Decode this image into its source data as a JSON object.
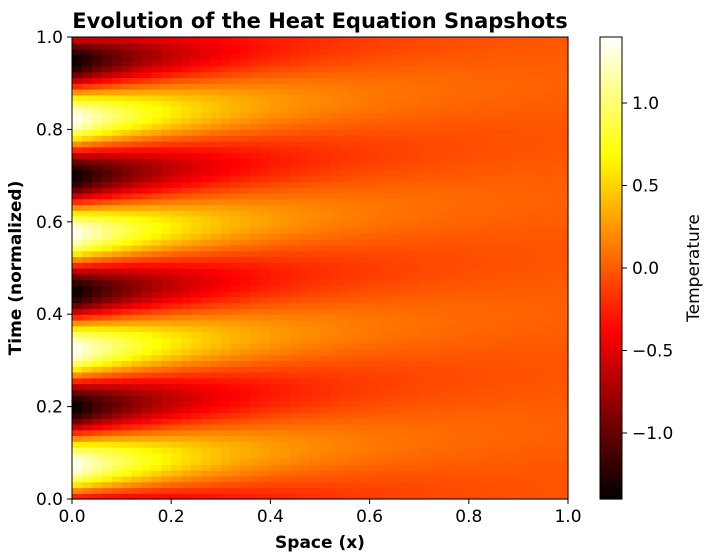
{
  "chart_data": {
    "type": "heatmap",
    "title": "Evolution of the Heat Equation Snapshots",
    "xlabel": "Space (x)",
    "ylabel": "Time (normalized)",
    "xlim": [
      0.0,
      1.0
    ],
    "ylim": [
      0.0,
      1.0
    ],
    "x_ticks": [
      "0.0",
      "0.2",
      "0.4",
      "0.6",
      "0.8",
      "1.0"
    ],
    "y_ticks": [
      "0.0",
      "0.2",
      "0.4",
      "0.6",
      "0.8",
      "1.0"
    ],
    "colormap": "hot",
    "colorbar": {
      "label": "Temperature",
      "range": [
        -1.4,
        1.4
      ],
      "tick_values": [
        -1.0,
        -0.5,
        0.0,
        0.5,
        1.0
      ],
      "ticks": [
        "−1.0",
        "−0.5",
        "0.0",
        "0.5",
        "1.0"
      ]
    },
    "grid_resolution": {
      "nx": 50,
      "nt": 80
    },
    "field": {
      "description_of_pattern": "oscillating source at x=0 diffusing rightward",
      "time_periods": 4,
      "amplitude_at_source": 1.4,
      "decay_length_x": 0.25,
      "phase_lag_per_x": 2.0
    },
    "grid": false
  }
}
